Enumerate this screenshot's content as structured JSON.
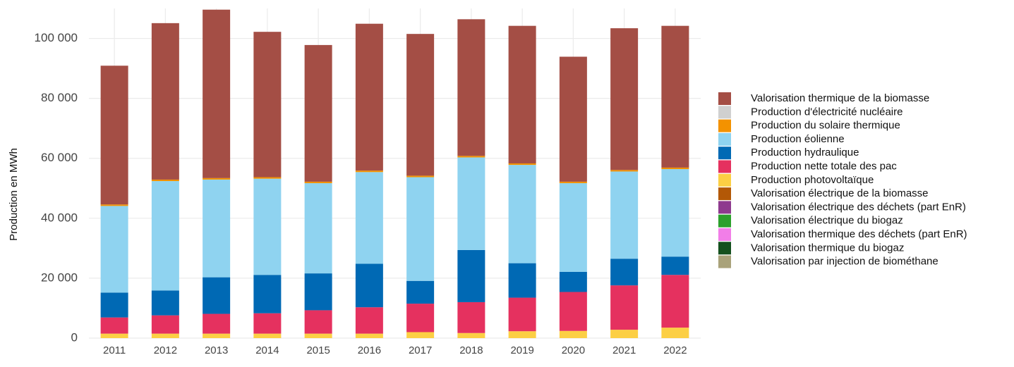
{
  "chart_data": {
    "type": "bar",
    "stacked": true,
    "ylabel": "Production en MWh",
    "categories": [
      "2011",
      "2012",
      "2013",
      "2014",
      "2015",
      "2016",
      "2017",
      "2018",
      "2019",
      "2020",
      "2021",
      "2022"
    ],
    "ylim": [
      0,
      110000
    ],
    "yticks": [
      {
        "value": 0,
        "label": "0"
      },
      {
        "value": 20000,
        "label": "20 000"
      },
      {
        "value": 40000,
        "label": "40 000"
      },
      {
        "value": 60000,
        "label": "60 000"
      },
      {
        "value": 80000,
        "label": "80 000"
      },
      {
        "value": 100000,
        "label": "100 000"
      }
    ],
    "grid": true,
    "legend": "right",
    "series": [
      {
        "name": "Valorisation thermique de la biomasse",
        "color": "#a44e45",
        "values": [
          46300,
          52200,
          56200,
          48500,
          45600,
          49000,
          47300,
          45600,
          45900,
          41700,
          47300,
          47300
        ]
      },
      {
        "name": "Production d'électricité nucléaire",
        "color": "#d0d0d0",
        "values": [
          0,
          0,
          0,
          0,
          0,
          0,
          0,
          0,
          0,
          0,
          0,
          0
        ]
      },
      {
        "name": "Production du solaire thermique",
        "color": "#f39200",
        "values": [
          500,
          500,
          500,
          500,
          500,
          500,
          500,
          500,
          500,
          500,
          500,
          500
        ]
      },
      {
        "name": "Production éolienne",
        "color": "#8fd3f0",
        "values": [
          28900,
          36500,
          32600,
          32100,
          30100,
          30600,
          34600,
          30900,
          32800,
          29600,
          29100,
          29200
        ]
      },
      {
        "name": "Production hydraulique",
        "color": "#0069b4",
        "values": [
          8300,
          8300,
          12200,
          12800,
          12300,
          14500,
          7600,
          17400,
          11500,
          6700,
          8900,
          6100
        ]
      },
      {
        "name": "Production nette totale des pac",
        "color": "#e5315f",
        "values": [
          5400,
          6100,
          6600,
          6800,
          7800,
          8800,
          9500,
          10300,
          11200,
          13000,
          14800,
          17600
        ]
      },
      {
        "name": "Production photovoltaïque",
        "color": "#fccf44",
        "values": [
          1500,
          1500,
          1500,
          1500,
          1500,
          1500,
          2000,
          1700,
          2300,
          2400,
          2800,
          3500
        ]
      },
      {
        "name": "Valorisation électrique de la biomasse",
        "color": "#b35806",
        "values": [
          0,
          0,
          0,
          0,
          0,
          0,
          0,
          0,
          0,
          0,
          0,
          0
        ]
      },
      {
        "name": "Valorisation électrique des déchets (part EnR)",
        "color": "#8e3a8e",
        "values": [
          0,
          0,
          0,
          0,
          0,
          0,
          0,
          0,
          0,
          0,
          0,
          0
        ]
      },
      {
        "name": "Valorisation électrique du biogaz",
        "color": "#2ca02c",
        "values": [
          0,
          0,
          0,
          0,
          0,
          0,
          0,
          0,
          0,
          0,
          0,
          0
        ]
      },
      {
        "name": "Valorisation thermique des déchets (part EnR)",
        "color": "#f27ee8",
        "values": [
          0,
          0,
          0,
          0,
          0,
          0,
          0,
          0,
          0,
          0,
          0,
          0
        ]
      },
      {
        "name": "Valorisation thermique du biogaz",
        "color": "#14501e",
        "values": [
          0,
          0,
          0,
          0,
          0,
          0,
          0,
          0,
          0,
          0,
          0,
          0
        ]
      },
      {
        "name": "Valorisation par injection de biométhane",
        "color": "#a9a27a",
        "values": [
          0,
          0,
          0,
          0,
          0,
          0,
          0,
          0,
          0,
          0,
          0,
          0
        ]
      }
    ]
  }
}
